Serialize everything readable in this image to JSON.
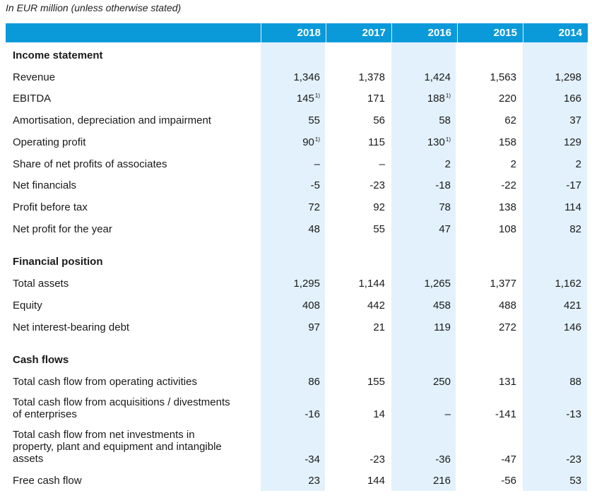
{
  "caption": "In EUR million (unless otherwise stated)",
  "years": [
    "2018",
    "2017",
    "2016",
    "2015",
    "2014"
  ],
  "sections": {
    "income": "Income statement",
    "financial": "Financial position",
    "cash": "Cash flows"
  },
  "footnote_mark": "1)",
  "rows": [
    {
      "label": "Revenue",
      "values": [
        "1,346",
        "1,378",
        "1,424",
        "1,563",
        "1,298"
      ]
    },
    {
      "label": "EBITDA",
      "values": [
        "145",
        "171",
        "188",
        "220",
        "166"
      ]
    },
    {
      "label": "Amortisation, depreciation and impairment",
      "values": [
        "55",
        "56",
        "58",
        "62",
        "37"
      ]
    },
    {
      "label": "Operating profit",
      "values": [
        "90",
        "115",
        "130",
        "158",
        "129"
      ]
    },
    {
      "label": "Share of net profits of associates",
      "values": [
        "–",
        "–",
        "2",
        "2",
        "2"
      ]
    },
    {
      "label": "Net financials",
      "values": [
        "-5",
        "-23",
        "-18",
        "-22",
        "-17"
      ]
    },
    {
      "label": "Profit before tax",
      "values": [
        "72",
        "92",
        "78",
        "138",
        "114"
      ]
    },
    {
      "label": "Net profit for the year",
      "values": [
        "48",
        "55",
        "47",
        "108",
        "82"
      ]
    },
    {
      "label": "Total assets",
      "values": [
        "1,295",
        "1,144",
        "1,265",
        "1,377",
        "1,162"
      ]
    },
    {
      "label": "Equity",
      "values": [
        "408",
        "442",
        "458",
        "488",
        "421"
      ]
    },
    {
      "label": "Net interest-bearing debt",
      "values": [
        "97",
        "21",
        "119",
        "272",
        "146"
      ]
    },
    {
      "label": "Total cash flow from operating activities",
      "values": [
        "86",
        "155",
        "250",
        "131",
        "88"
      ]
    },
    {
      "label_lines": [
        "Total cash flow from acquisitions / divestments",
        "of enterprises"
      ],
      "values": [
        "-16",
        "14",
        "–",
        "-141",
        "-13"
      ]
    },
    {
      "label_lines": [
        "Total cash flow from net investments in",
        "property, plant and equipment and intangible",
        "assets"
      ],
      "values": [
        "-34",
        "-23",
        "-36",
        "-47",
        "-23"
      ]
    },
    {
      "label": "Free cash flow",
      "values": [
        "23",
        "144",
        "216",
        "-56",
        "53"
      ]
    }
  ]
}
